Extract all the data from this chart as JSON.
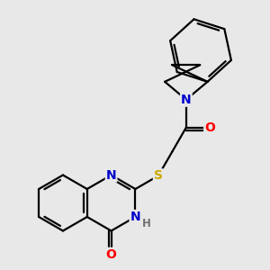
{
  "bg_color": "#e8e8e8",
  "atom_colors": {
    "C": "#000000",
    "N": "#0000cd",
    "O": "#ff0000",
    "S": "#ccaa00",
    "H": "#707070"
  },
  "bond_color": "#000000",
  "bond_width": 1.6,
  "font_size_atom": 10,
  "font_size_h": 8.5
}
